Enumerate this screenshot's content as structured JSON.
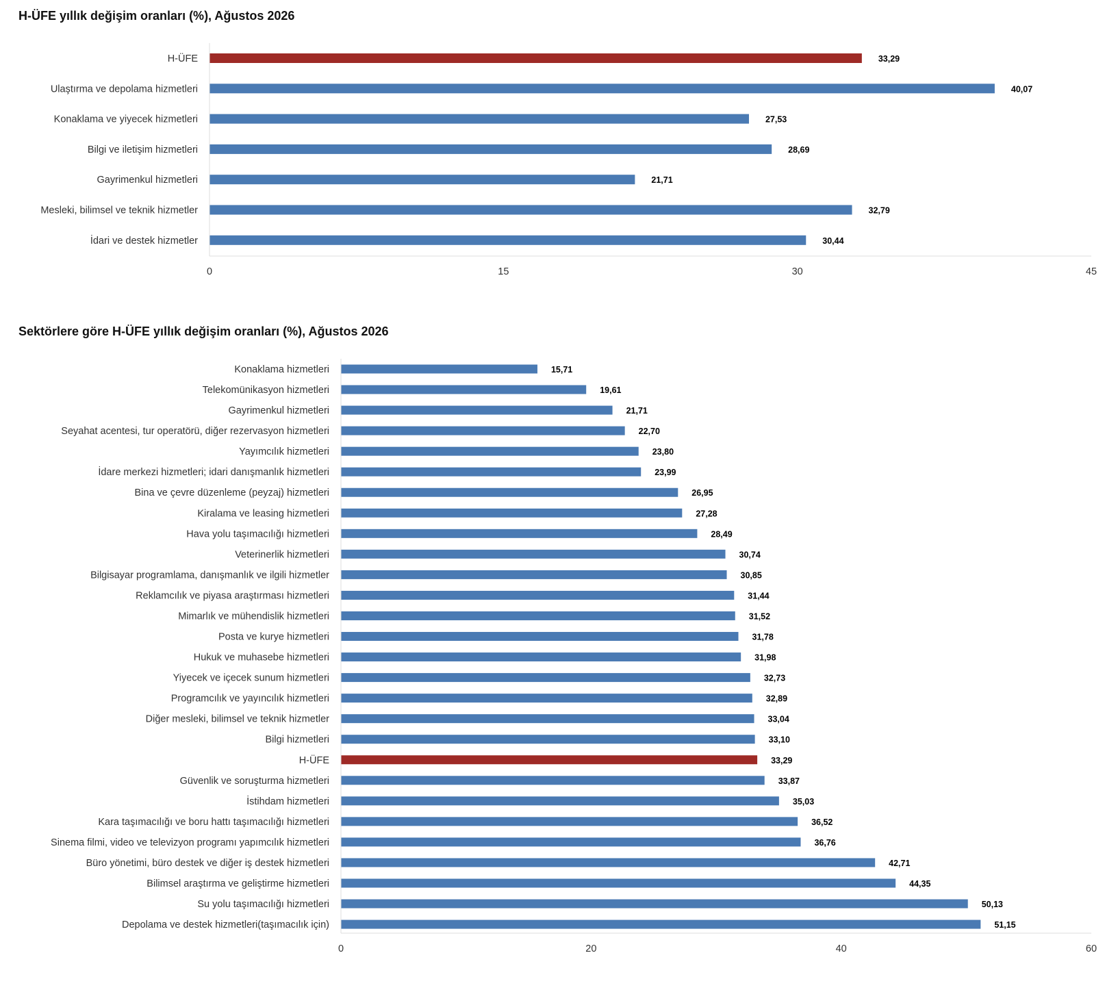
{
  "chart_data": [
    {
      "type": "bar",
      "orientation": "horizontal",
      "title": "H-ÜFE yıllık değişim oranları (%), Ağustos 2026",
      "categories": [
        "H-ÜFE",
        "Ulaştırma ve depolama hizmetleri",
        "Konaklama ve yiyecek hizmetleri",
        "Bilgi ve iletişim hizmetleri",
        "Gayrimenkul hizmetleri",
        "Mesleki, bilimsel ve teknik hizmetler",
        "İdari ve destek hizmetler"
      ],
      "values": [
        33.29,
        40.07,
        27.53,
        28.69,
        21.71,
        32.79,
        30.44
      ],
      "value_labels": [
        "33,29",
        "40,07",
        "27,53",
        "28,69",
        "21,71",
        "32,79",
        "30,44"
      ],
      "highlight": "H-ÜFE",
      "xlim": [
        0,
        45
      ],
      "xticks": [
        0,
        15,
        30,
        45
      ],
      "grid": false,
      "colors": {
        "bar": "#4a7ab3",
        "highlight": "#9e2a26"
      }
    },
    {
      "type": "bar",
      "orientation": "horizontal",
      "title": "Sektörlere göre H-ÜFE yıllık değişim oranları (%), Ağustos 2026",
      "categories": [
        "Konaklama hizmetleri",
        "Telekomünikasyon hizmetleri",
        "Gayrimenkul hizmetleri",
        "Seyahat acentesi, tur operatörü, diğer rezervasyon hizmetleri",
        "Yayımcılık hizmetleri",
        "İdare merkezi hizmetleri; idari danışmanlık hizmetleri",
        "Bina ve çevre düzenleme (peyzaj) hizmetleri",
        "Kiralama ve leasing hizmetleri",
        "Hava yolu taşımacılığı hizmetleri",
        "Veterinerlik hizmetleri",
        "Bilgisayar programlama, danışmanlık ve ilgili hizmetler",
        "Reklamcılık ve piyasa araştırması hizmetleri",
        "Mimarlık ve mühendislik hizmetleri",
        "Posta ve kurye hizmetleri",
        "Hukuk ve muhasebe hizmetleri",
        "Yiyecek ve içecek sunum hizmetleri",
        "Programcılık ve yayıncılık hizmetleri",
        "Diğer mesleki, bilimsel ve teknik hizmetler",
        "Bilgi hizmetleri",
        "H-ÜFE",
        "Güvenlik ve soruşturma hizmetleri",
        "İstihdam hizmetleri",
        "Kara taşımacılığı ve boru hattı taşımacılığı hizmetleri",
        "Sinema filmi, video ve televizyon programı yapımcılık hizmetleri",
        "Büro yönetimi, büro destek ve diğer iş destek hizmetleri",
        "Bilimsel araştırma ve geliştirme hizmetleri",
        "Su yolu taşımacılığı hizmetleri",
        "Depolama ve destek hizmetleri(taşımacılık için)"
      ],
      "values": [
        15.71,
        19.61,
        21.71,
        22.7,
        23.8,
        23.99,
        26.95,
        27.28,
        28.49,
        30.74,
        30.85,
        31.44,
        31.52,
        31.78,
        31.98,
        32.73,
        32.89,
        33.04,
        33.1,
        33.29,
        33.87,
        35.03,
        36.52,
        36.76,
        42.71,
        44.35,
        50.13,
        51.15
      ],
      "value_labels": [
        "15,71",
        "19,61",
        "21,71",
        "22,70",
        "23,80",
        "23,99",
        "26,95",
        "27,28",
        "28,49",
        "30,74",
        "30,85",
        "31,44",
        "31,52",
        "31,78",
        "31,98",
        "32,73",
        "32,89",
        "33,04",
        "33,10",
        "33,29",
        "33,87",
        "35,03",
        "36,52",
        "36,76",
        "42,71",
        "44,35",
        "50,13",
        "51,15"
      ],
      "highlight": "H-ÜFE",
      "xlim": [
        0,
        60
      ],
      "xticks": [
        0,
        20,
        40,
        60
      ],
      "grid": false,
      "colors": {
        "bar": "#4a7ab3",
        "highlight": "#9e2a26"
      }
    }
  ]
}
